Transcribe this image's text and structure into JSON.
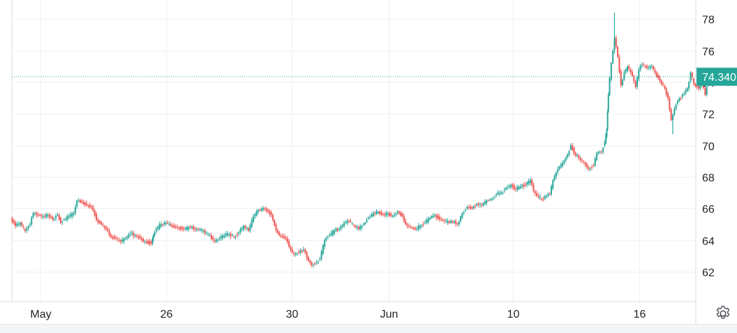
{
  "chart_data": {
    "type": "candlestick",
    "title": "",
    "xlabel": "",
    "ylabel": "",
    "ylim": [
      60.1,
      79.2
    ],
    "y_ticks": [
      62,
      64,
      66,
      68,
      70,
      72,
      74,
      76,
      78
    ],
    "y_tick_labels": [
      "62",
      "64",
      "66",
      "68",
      "70",
      "72",
      "74",
      "76",
      "78"
    ],
    "x_ticks": [
      {
        "label": "May",
        "day": 0
      },
      {
        "label": "26",
        "day": 7.75
      },
      {
        "label": "30",
        "day": 15.5
      },
      {
        "label": "Jun",
        "day": 21.5
      },
      {
        "label": "10",
        "day": 29.2
      },
      {
        "label": "16",
        "day": 37.0
      }
    ],
    "last_price": 74.34,
    "last_price_label": "74.340",
    "grid": true,
    "colors": {
      "up": "#26a69a",
      "down": "#ef5350",
      "last_price": "#26a69a",
      "price_line": "#26a69a"
    },
    "series": [
      {
        "values": [
          [
            -1.8,
            65.4
          ],
          [
            -1.5,
            64.9
          ],
          [
            -1.2,
            65.1
          ],
          [
            -0.9,
            64.6
          ],
          [
            -0.6,
            65.0
          ],
          [
            -0.4,
            65.7
          ],
          [
            -0.1,
            65.6
          ],
          [
            0.2,
            65.5
          ],
          [
            0.5,
            65.6
          ],
          [
            0.8,
            65.3
          ],
          [
            1.1,
            65.6
          ],
          [
            1.3,
            65.1
          ],
          [
            1.5,
            65.3
          ],
          [
            1.8,
            65.5
          ],
          [
            2.1,
            65.7
          ],
          [
            2.3,
            66.5
          ],
          [
            2.6,
            66.4
          ],
          [
            2.9,
            66.2
          ],
          [
            3.2,
            66.1
          ],
          [
            3.5,
            65.3
          ],
          [
            3.8,
            65.0
          ],
          [
            4.1,
            64.7
          ],
          [
            4.4,
            64.2
          ],
          [
            4.7,
            64.1
          ],
          [
            5.0,
            63.9
          ],
          [
            5.3,
            64.1
          ],
          [
            5.6,
            64.4
          ],
          [
            5.9,
            64.3
          ],
          [
            6.2,
            64.1
          ],
          [
            6.5,
            63.9
          ],
          [
            6.9,
            63.8
          ],
          [
            7.0,
            64.3
          ],
          [
            7.2,
            64.7
          ],
          [
            7.5,
            65.0
          ],
          [
            7.8,
            65.1
          ],
          [
            8.1,
            64.9
          ],
          [
            8.5,
            64.8
          ],
          [
            8.9,
            64.7
          ],
          [
            9.3,
            64.8
          ],
          [
            9.7,
            64.7
          ],
          [
            10.1,
            64.6
          ],
          [
            10.5,
            64.3
          ],
          [
            10.8,
            63.9
          ],
          [
            11.1,
            64.1
          ],
          [
            11.4,
            64.3
          ],
          [
            11.7,
            64.4
          ],
          [
            12.0,
            64.2
          ],
          [
            12.3,
            64.5
          ],
          [
            12.6,
            64.9
          ],
          [
            12.9,
            64.6
          ],
          [
            13.2,
            65.5
          ],
          [
            13.5,
            65.9
          ],
          [
            13.9,
            66.0
          ],
          [
            14.3,
            65.6
          ],
          [
            14.6,
            64.6
          ],
          [
            14.8,
            64.3
          ],
          [
            15.2,
            64.1
          ],
          [
            15.5,
            63.4
          ],
          [
            15.7,
            63.1
          ],
          [
            16.0,
            63.2
          ],
          [
            16.3,
            63.4
          ],
          [
            16.6,
            62.7
          ],
          [
            16.8,
            62.4
          ],
          [
            17.1,
            62.6
          ],
          [
            17.3,
            62.8
          ],
          [
            17.6,
            64.0
          ],
          [
            17.9,
            64.3
          ],
          [
            18.2,
            64.6
          ],
          [
            18.5,
            64.7
          ],
          [
            18.8,
            65.1
          ],
          [
            19.1,
            65.2
          ],
          [
            19.4,
            64.9
          ],
          [
            19.7,
            64.7
          ],
          [
            20.0,
            65.0
          ],
          [
            20.3,
            65.4
          ],
          [
            20.6,
            65.7
          ],
          [
            20.9,
            65.8
          ],
          [
            21.2,
            65.6
          ],
          [
            21.5,
            65.7
          ],
          [
            21.8,
            65.5
          ],
          [
            22.1,
            65.8
          ],
          [
            22.4,
            65.5
          ],
          [
            22.6,
            65.0
          ],
          [
            22.9,
            64.8
          ],
          [
            23.2,
            64.7
          ],
          [
            23.5,
            64.9
          ],
          [
            23.8,
            65.1
          ],
          [
            24.1,
            65.4
          ],
          [
            24.4,
            65.6
          ],
          [
            24.7,
            65.3
          ],
          [
            25.0,
            65.2
          ],
          [
            25.3,
            65.1
          ],
          [
            25.6,
            65.2
          ],
          [
            25.8,
            65.0
          ],
          [
            26.1,
            65.7
          ],
          [
            26.4,
            66.1
          ],
          [
            26.7,
            66.0
          ],
          [
            27.0,
            66.3
          ],
          [
            27.3,
            66.2
          ],
          [
            27.6,
            66.5
          ],
          [
            27.9,
            66.6
          ],
          [
            28.2,
            66.9
          ],
          [
            28.5,
            67.0
          ],
          [
            28.8,
            67.3
          ],
          [
            29.1,
            67.5
          ],
          [
            29.4,
            67.2
          ],
          [
            29.7,
            67.4
          ],
          [
            30.0,
            67.5
          ],
          [
            30.3,
            67.8
          ],
          [
            30.5,
            67.1
          ],
          [
            30.7,
            66.8
          ],
          [
            31.0,
            66.6
          ],
          [
            31.3,
            66.8
          ],
          [
            31.5,
            66.9
          ],
          [
            31.7,
            67.8
          ],
          [
            32.0,
            68.5
          ],
          [
            32.3,
            68.9
          ],
          [
            32.6,
            69.4
          ],
          [
            32.8,
            70.0
          ],
          [
            33.0,
            69.5
          ],
          [
            33.3,
            69.2
          ],
          [
            33.6,
            68.9
          ],
          [
            33.9,
            68.5
          ],
          [
            34.2,
            68.7
          ],
          [
            34.4,
            69.5
          ],
          [
            34.7,
            69.6
          ],
          [
            34.9,
            70.2
          ],
          [
            35.0,
            71.0
          ],
          [
            35.1,
            73.2
          ],
          [
            35.3,
            75.2
          ],
          [
            35.5,
            76.8
          ],
          [
            35.7,
            75.6
          ],
          [
            35.9,
            73.8
          ],
          [
            36.1,
            74.6
          ],
          [
            36.3,
            75.0
          ],
          [
            36.6,
            74.4
          ],
          [
            36.8,
            73.7
          ],
          [
            37.0,
            74.8
          ],
          [
            37.2,
            75.1
          ],
          [
            37.5,
            74.9
          ],
          [
            37.8,
            75.0
          ],
          [
            38.0,
            74.6
          ],
          [
            38.3,
            74.1
          ],
          [
            38.6,
            73.6
          ],
          [
            38.8,
            73.0
          ],
          [
            39.0,
            71.6
          ],
          [
            39.2,
            72.3
          ],
          [
            39.4,
            72.8
          ],
          [
            39.7,
            73.2
          ],
          [
            40.0,
            73.6
          ],
          [
            40.2,
            74.6
          ],
          [
            40.4,
            73.9
          ],
          [
            40.7,
            73.6
          ],
          [
            40.9,
            73.9
          ],
          [
            41.1,
            73.2
          ],
          [
            41.3,
            74.34
          ]
        ]
      }
    ]
  }
}
